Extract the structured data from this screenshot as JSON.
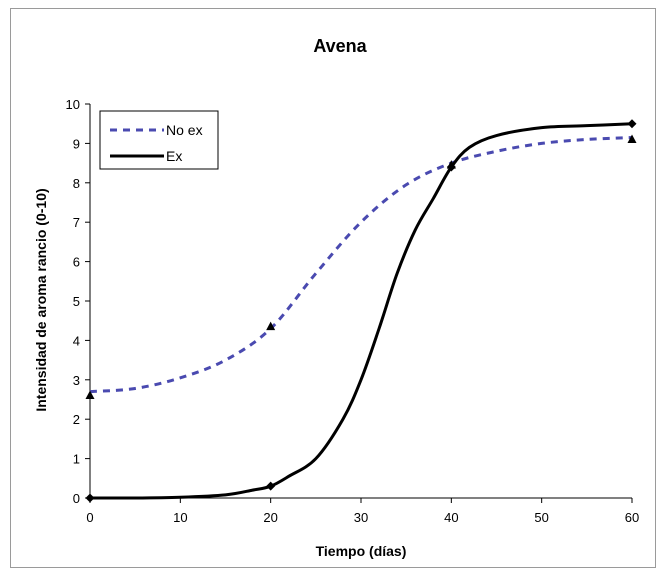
{
  "chart_data": {
    "type": "line",
    "title": "Avena",
    "xlabel": "Tiempo (días)",
    "ylabel": "Intensidad de aroma rancio (0-10)",
    "xlim": [
      0,
      60
    ],
    "ylim": [
      0,
      10
    ],
    "x_ticks": [
      "0",
      "10",
      "20",
      "30",
      "40",
      "50",
      "60"
    ],
    "y_ticks": [
      "0",
      "1",
      "2",
      "3",
      "4",
      "5",
      "6",
      "7",
      "8",
      "9",
      "10"
    ],
    "grid": false,
    "legend_position": "top-left",
    "series": [
      {
        "name": "No ex",
        "style": "dashed",
        "color": "#4a4ab0",
        "marker": "triangle",
        "markers": [
          {
            "x": 0,
            "y": 2.6
          },
          {
            "x": 20,
            "y": 4.35
          },
          {
            "x": 40,
            "y": 8.45
          },
          {
            "x": 60,
            "y": 9.1
          }
        ],
        "curve": [
          {
            "x": 0,
            "y": 2.7
          },
          {
            "x": 5,
            "y": 2.78
          },
          {
            "x": 10,
            "y": 3.05
          },
          {
            "x": 15,
            "y": 3.5
          },
          {
            "x": 20,
            "y": 4.3
          },
          {
            "x": 25,
            "y": 5.7
          },
          {
            "x": 30,
            "y": 7.0
          },
          {
            "x": 35,
            "y": 7.95
          },
          {
            "x": 40,
            "y": 8.5
          },
          {
            "x": 45,
            "y": 8.8
          },
          {
            "x": 50,
            "y": 9.0
          },
          {
            "x": 55,
            "y": 9.1
          },
          {
            "x": 60,
            "y": 9.15
          }
        ]
      },
      {
        "name": "Ex",
        "style": "solid",
        "color": "#000000",
        "marker": "diamond",
        "markers": [
          {
            "x": 0,
            "y": 0
          },
          {
            "x": 20,
            "y": 0.3
          },
          {
            "x": 40,
            "y": 8.4
          },
          {
            "x": 60,
            "y": 9.5
          }
        ],
        "curve": [
          {
            "x": 0,
            "y": 0
          },
          {
            "x": 5,
            "y": 0
          },
          {
            "x": 10,
            "y": 0.02
          },
          {
            "x": 15,
            "y": 0.08
          },
          {
            "x": 18,
            "y": 0.2
          },
          {
            "x": 20,
            "y": 0.3
          },
          {
            "x": 22,
            "y": 0.55
          },
          {
            "x": 25,
            "y": 1.0
          },
          {
            "x": 28,
            "y": 2.0
          },
          {
            "x": 30,
            "y": 3.0
          },
          {
            "x": 32,
            "y": 4.3
          },
          {
            "x": 34,
            "y": 5.7
          },
          {
            "x": 36,
            "y": 6.8
          },
          {
            "x": 38,
            "y": 7.6
          },
          {
            "x": 40,
            "y": 8.4
          },
          {
            "x": 42,
            "y": 8.9
          },
          {
            "x": 45,
            "y": 9.2
          },
          {
            "x": 50,
            "y": 9.4
          },
          {
            "x": 55,
            "y": 9.45
          },
          {
            "x": 60,
            "y": 9.5
          }
        ]
      }
    ]
  }
}
